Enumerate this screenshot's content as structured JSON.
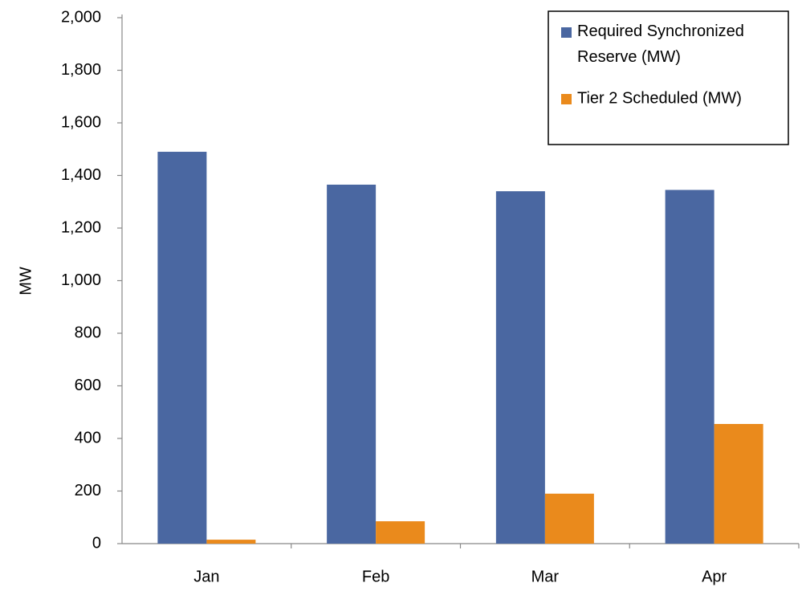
{
  "chart_data": {
    "type": "bar",
    "y_label": "MW",
    "categories": [
      "Jan",
      "Feb",
      "Mar",
      "Apr"
    ],
    "series": [
      {
        "name": "Required Synchronized Reserve (MW)",
        "color": "#4a67a1",
        "values": [
          1490,
          1365,
          1340,
          1345
        ]
      },
      {
        "name": "Tier 2 Scheduled  (MW)",
        "color": "#ea8a1c",
        "values": [
          15,
          85,
          190,
          455
        ]
      }
    ],
    "ylim": [
      0,
      2000
    ],
    "yticks": [
      0,
      200,
      400,
      600,
      800,
      {
        "value": 1000,
        "label": "1,000"
      },
      {
        "value": 1200,
        "label": "1,200"
      },
      {
        "value": 1400,
        "label": "1,400"
      },
      {
        "value": 1600,
        "label": "1,600"
      },
      {
        "value": 1800,
        "label": "1,800"
      },
      {
        "value": 2000,
        "label": "2,000"
      }
    ],
    "grid": false,
    "legend": "upper right"
  }
}
